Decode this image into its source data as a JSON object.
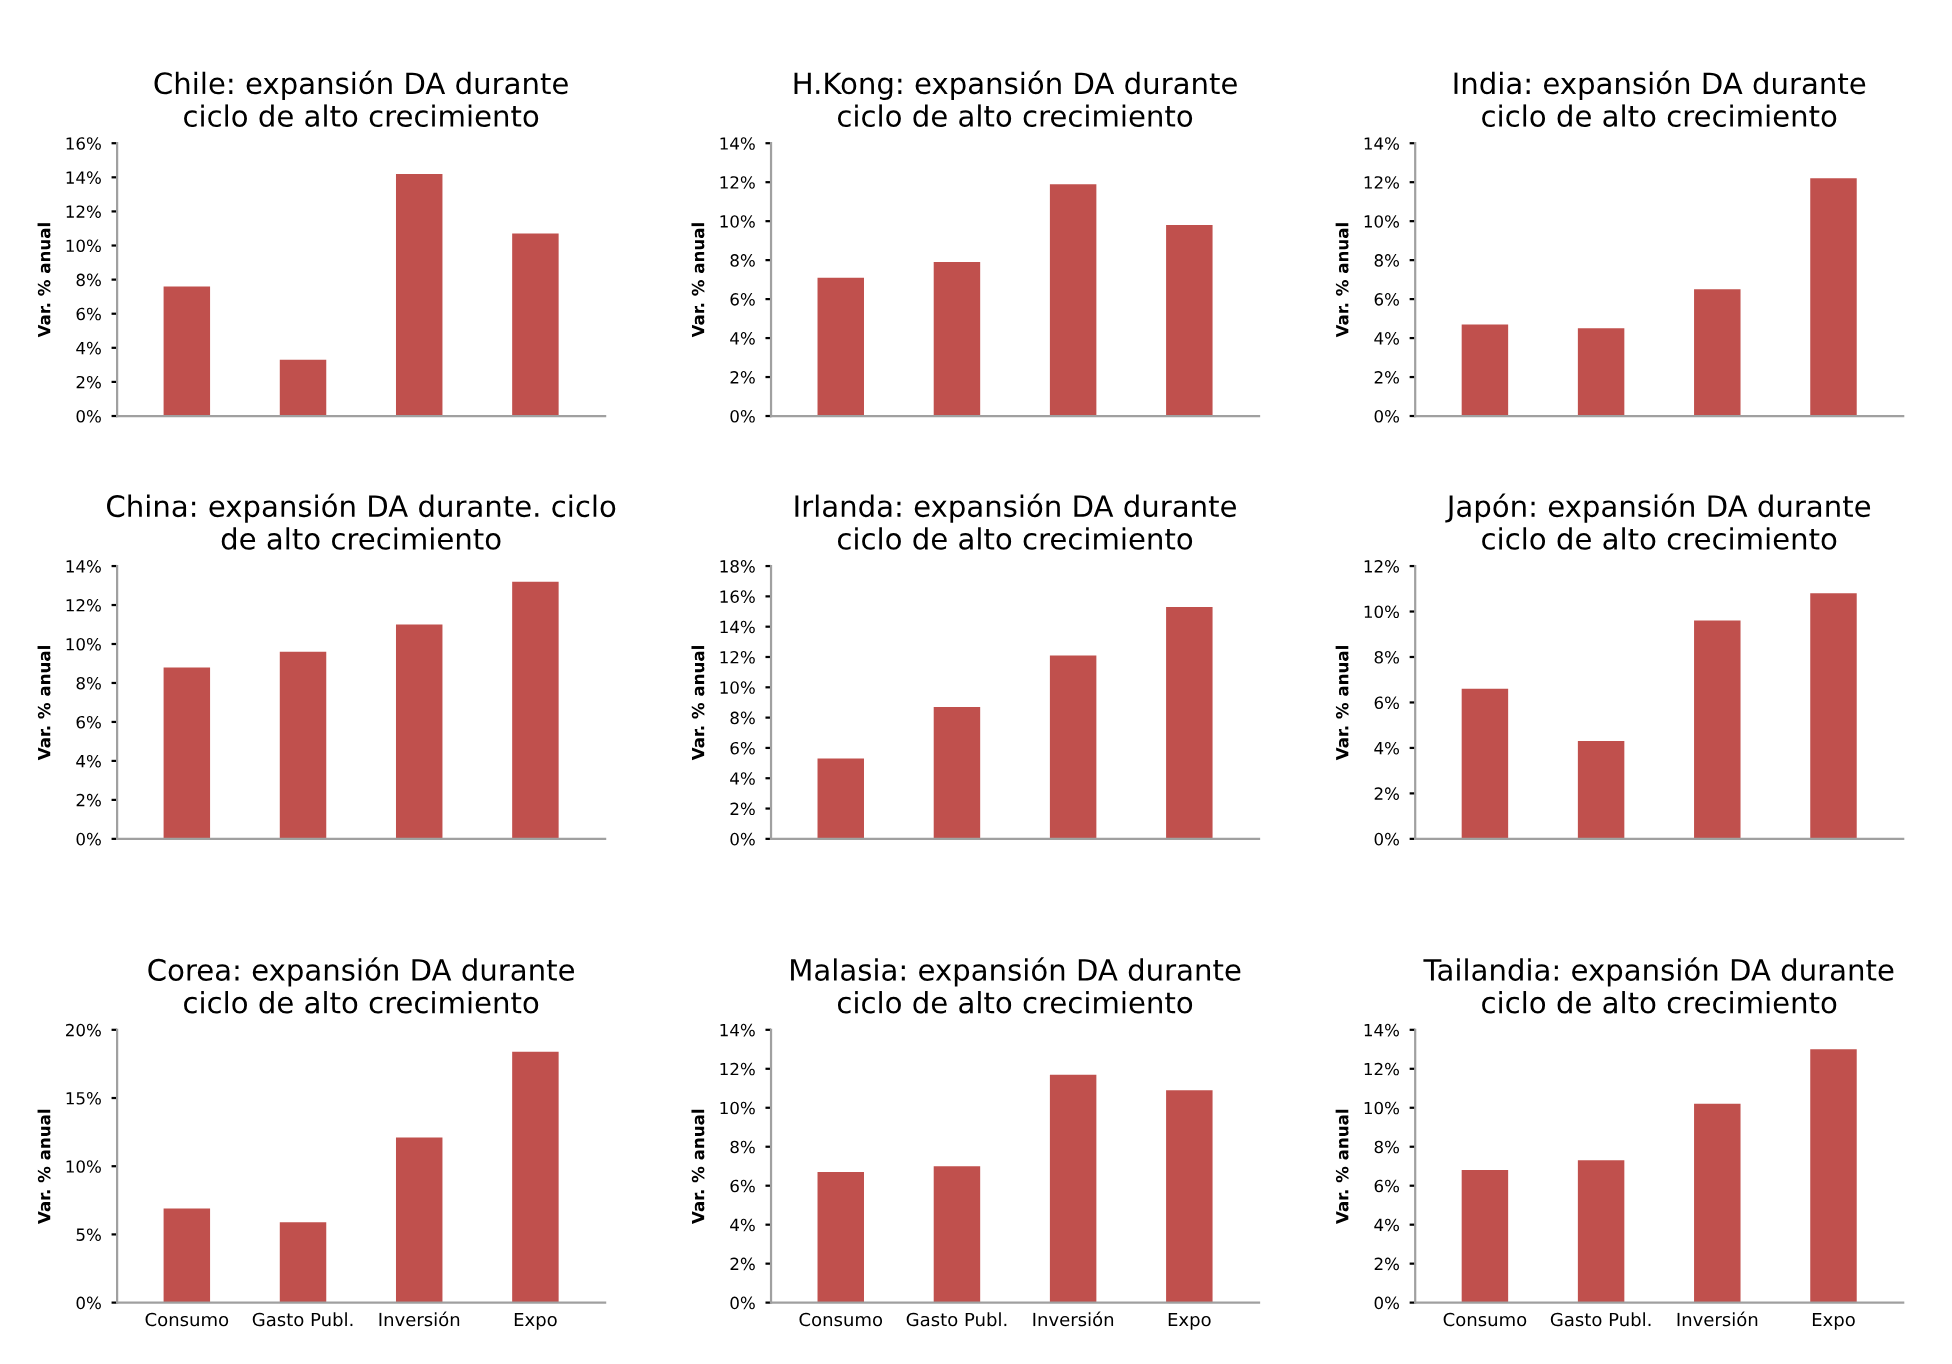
{
  "chart_data": [
    {
      "type": "bar",
      "title": "Chile: expansión DA durante\nciclo de alto crecimiento",
      "ylabel": "Var. % anual",
      "categories": [
        null,
        null,
        null,
        null
      ],
      "values": [
        7.6,
        3.3,
        14.2,
        10.7
      ],
      "color": "#c0504d",
      "ylim": [
        0,
        16
      ],
      "yticks": [
        {
          "value": 0,
          "label": "0%"
        },
        {
          "value": 2,
          "label": "2%"
        },
        {
          "value": 4,
          "label": "4%"
        },
        {
          "value": 6,
          "label": "6%"
        },
        {
          "value": 8,
          "label": "8%"
        },
        {
          "value": 10,
          "label": "10%"
        },
        {
          "value": 12,
          "label": "12%"
        },
        {
          "value": 14,
          "label": "14%"
        },
        {
          "value": 16,
          "label": "16%"
        }
      ],
      "grid": false,
      "legend": false
    },
    {
      "type": "bar",
      "title": "H.Kong: expansión DA durante\nciclo de alto crecimiento",
      "ylabel": "Var. % anual",
      "categories": [
        null,
        null,
        null,
        null
      ],
      "values": [
        7.1,
        7.9,
        11.9,
        9.8
      ],
      "color": "#c0504d",
      "ylim": [
        0,
        14
      ],
      "yticks": [
        {
          "value": 0,
          "label": "0%"
        },
        {
          "value": 2,
          "label": "2%"
        },
        {
          "value": 4,
          "label": "4%"
        },
        {
          "value": 6,
          "label": "6%"
        },
        {
          "value": 8,
          "label": "8%"
        },
        {
          "value": 10,
          "label": "10%"
        },
        {
          "value": 12,
          "label": "12%"
        },
        {
          "value": 14,
          "label": "14%"
        }
      ],
      "grid": false,
      "legend": false
    },
    {
      "type": "bar",
      "title": "India: expansión DA durante\nciclo de alto crecimiento",
      "ylabel": "Var. % anual",
      "categories": [
        null,
        null,
        null,
        null
      ],
      "values": [
        4.7,
        4.5,
        6.5,
        12.2
      ],
      "color": "#c0504d",
      "ylim": [
        0,
        14
      ],
      "yticks": [
        {
          "value": 0,
          "label": "0%"
        },
        {
          "value": 2,
          "label": "2%"
        },
        {
          "value": 4,
          "label": "4%"
        },
        {
          "value": 6,
          "label": "6%"
        },
        {
          "value": 8,
          "label": "8%"
        },
        {
          "value": 10,
          "label": "10%"
        },
        {
          "value": 12,
          "label": "12%"
        },
        {
          "value": 14,
          "label": "14%"
        }
      ],
      "grid": false,
      "legend": false
    },
    {
      "type": "bar",
      "title": "China: expansión DA durante. ciclo\nde alto crecimiento",
      "ylabel": "Var. % anual",
      "categories": [
        null,
        null,
        null,
        null
      ],
      "values": [
        8.8,
        9.6,
        11.0,
        13.2
      ],
      "color": "#c0504d",
      "ylim": [
        0,
        14
      ],
      "yticks": [
        {
          "value": 0,
          "label": "0%"
        },
        {
          "value": 2,
          "label": "2%"
        },
        {
          "value": 4,
          "label": "4%"
        },
        {
          "value": 6,
          "label": "6%"
        },
        {
          "value": 8,
          "label": "8%"
        },
        {
          "value": 10,
          "label": "10%"
        },
        {
          "value": 12,
          "label": "12%"
        },
        {
          "value": 14,
          "label": "14%"
        }
      ],
      "grid": false,
      "legend": false
    },
    {
      "type": "bar",
      "title": "Irlanda: expansión DA durante\nciclo de alto crecimiento",
      "ylabel": "Var. % anual",
      "categories": [
        null,
        null,
        null,
        null
      ],
      "values": [
        5.3,
        8.7,
        12.1,
        15.3
      ],
      "color": "#c0504d",
      "ylim": [
        0,
        18
      ],
      "yticks": [
        {
          "value": 0,
          "label": "0%"
        },
        {
          "value": 2,
          "label": "2%"
        },
        {
          "value": 4,
          "label": "4%"
        },
        {
          "value": 6,
          "label": "6%"
        },
        {
          "value": 8,
          "label": "8%"
        },
        {
          "value": 10,
          "label": "10%"
        },
        {
          "value": 12,
          "label": "12%"
        },
        {
          "value": 14,
          "label": "14%"
        },
        {
          "value": 16,
          "label": "16%"
        },
        {
          "value": 18,
          "label": "18%"
        }
      ],
      "grid": false,
      "legend": false
    },
    {
      "type": "bar",
      "title": "Japón: expansión DA durante\nciclo de alto crecimiento",
      "ylabel": "Var. % anual",
      "categories": [
        null,
        null,
        null,
        null
      ],
      "values": [
        6.6,
        4.3,
        9.6,
        10.8
      ],
      "color": "#c0504d",
      "ylim": [
        0,
        12
      ],
      "yticks": [
        {
          "value": 0,
          "label": "0%"
        },
        {
          "value": 2,
          "label": "2%"
        },
        {
          "value": 4,
          "label": "4%"
        },
        {
          "value": 6,
          "label": "6%"
        },
        {
          "value": 8,
          "label": "8%"
        },
        {
          "value": 10,
          "label": "10%"
        },
        {
          "value": 12,
          "label": "12%"
        }
      ],
      "grid": false,
      "legend": false
    },
    {
      "type": "bar",
      "title": "Corea: expansión DA durante\nciclo de alto crecimiento",
      "ylabel": "Var. % anual",
      "categories": [
        "Consumo",
        "Gasto Publ.",
        "Inversión",
        "Expo"
      ],
      "values": [
        6.9,
        5.9,
        12.1,
        18.4
      ],
      "color": "#c0504d",
      "ylim": [
        0,
        20
      ],
      "yticks": [
        {
          "value": 0,
          "label": "0%"
        },
        {
          "value": 5,
          "label": "5%"
        },
        {
          "value": 10,
          "label": "10%"
        },
        {
          "value": 15,
          "label": "15%"
        },
        {
          "value": 20,
          "label": "20%"
        }
      ],
      "grid": false,
      "legend": false
    },
    {
      "type": "bar",
      "title": "Malasia: expansión DA durante\nciclo de alto crecimiento",
      "ylabel": "Var. % anual",
      "categories": [
        "Consumo",
        "Gasto Publ.",
        "Inversión",
        "Expo"
      ],
      "values": [
        6.7,
        7.0,
        11.7,
        10.9
      ],
      "color": "#c0504d",
      "ylim": [
        0,
        14
      ],
      "yticks": [
        {
          "value": 0,
          "label": "0%"
        },
        {
          "value": 2,
          "label": "2%"
        },
        {
          "value": 4,
          "label": "4%"
        },
        {
          "value": 6,
          "label": "6%"
        },
        {
          "value": 8,
          "label": "8%"
        },
        {
          "value": 10,
          "label": "10%"
        },
        {
          "value": 12,
          "label": "12%"
        },
        {
          "value": 14,
          "label": "14%"
        }
      ],
      "grid": false,
      "legend": false
    },
    {
      "type": "bar",
      "title": "Tailandia: expansión DA durante\nciclo de alto crecimiento",
      "ylabel": "Var. % anual",
      "categories": [
        "Consumo",
        "Gasto Publ.",
        "Inversión",
        "Expo"
      ],
      "values": [
        6.8,
        7.3,
        10.2,
        13.0
      ],
      "color": "#c0504d",
      "ylim": [
        0,
        14
      ],
      "yticks": [
        {
          "value": 0,
          "label": "0%"
        },
        {
          "value": 2,
          "label": "2%"
        },
        {
          "value": 4,
          "label": "4%"
        },
        {
          "value": 6,
          "label": "6%"
        },
        {
          "value": 8,
          "label": "8%"
        },
        {
          "value": 10,
          "label": "10%"
        },
        {
          "value": 12,
          "label": "12%"
        },
        {
          "value": 14,
          "label": "14%"
        }
      ],
      "grid": false,
      "legend": false
    }
  ]
}
